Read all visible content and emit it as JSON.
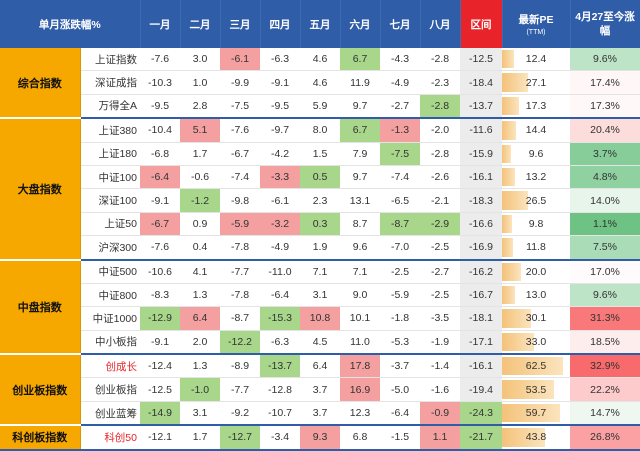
{
  "header": {
    "title": "单月涨跌幅%",
    "months": [
      "一月",
      "二月",
      "三月",
      "四月",
      "五月",
      "六月",
      "七月",
      "八月"
    ],
    "range": "区间",
    "pe": "最新PE",
    "pe_sub": "(TTM)",
    "ret": "4月27至今涨幅"
  },
  "colors": {
    "header_blue": "#2f5da8",
    "header_red": "#e8232a",
    "group_orange": "#f6a800",
    "positive_red": "#f4a0a0",
    "negative_green": "#a8d68a"
  },
  "groups": [
    {
      "name": "综合指数",
      "rows": [
        {
          "name": "上证指数",
          "m": [
            "-7.6",
            "3.0",
            "-6.1",
            "-6.3",
            "4.6",
            "6.7",
            "-4.3",
            "-2.8"
          ],
          "hl": [
            "",
            "",
            "pos",
            "",
            "",
            "neg",
            "",
            ""
          ],
          "range": "-12.5",
          "range_hl": "pos",
          "pe": "12.4",
          "pe_v": 12.4,
          "ret": "9.6%",
          "ret_v": 9.6
        },
        {
          "name": "深证成指",
          "m": [
            "-10.3",
            "1.0",
            "-9.9",
            "-9.1",
            "4.6",
            "11.9",
            "-4.9",
            "-2.3"
          ],
          "hl": [
            "",
            "",
            "",
            "",
            "",
            "",
            "",
            ""
          ],
          "range": "-18.4",
          "range_hl": "",
          "pe": "27.1",
          "pe_v": 27.1,
          "ret": "17.4%",
          "ret_v": 17.4
        },
        {
          "name": "万得全A",
          "m": [
            "-9.5",
            "2.8",
            "-7.5",
            "-9.5",
            "5.9",
            "9.7",
            "-2.7",
            "-2.8"
          ],
          "hl": [
            "",
            "",
            "",
            "",
            "",
            "",
            "",
            "neg"
          ],
          "range": "-13.7",
          "range_hl": "",
          "pe": "17.3",
          "pe_v": 17.3,
          "ret": "17.3%",
          "ret_v": 17.3
        }
      ]
    },
    {
      "name": "大盘指数",
      "rows": [
        {
          "name": "上证380",
          "m": [
            "-10.4",
            "5.1",
            "-7.6",
            "-9.7",
            "8.0",
            "6.7",
            "-1.3",
            "-2.0"
          ],
          "hl": [
            "",
            "pos",
            "",
            "",
            "",
            "neg",
            "pos",
            ""
          ],
          "range": "-11.6",
          "range_hl": "pos",
          "pe": "14.4",
          "pe_v": 14.4,
          "ret": "20.4%",
          "ret_v": 20.4
        },
        {
          "name": "上证180",
          "m": [
            "-6.8",
            "1.7",
            "-6.7",
            "-4.2",
            "1.5",
            "7.9",
            "-7.5",
            "-2.8"
          ],
          "hl": [
            "",
            "",
            "",
            "",
            "",
            "",
            "neg",
            ""
          ],
          "range": "-15.9",
          "range_hl": "",
          "pe": "9.6",
          "pe_v": 9.6,
          "ret": "3.7%",
          "ret_v": 3.7
        },
        {
          "name": "中证100",
          "m": [
            "-6.4",
            "-0.6",
            "-7.4",
            "-3.3",
            "0.5",
            "9.7",
            "-7.4",
            "-2.6"
          ],
          "hl": [
            "pos",
            "",
            "",
            "pos",
            "neg",
            "",
            "",
            ""
          ],
          "range": "-16.1",
          "range_hl": "",
          "pe": "13.2",
          "pe_v": 13.2,
          "ret": "4.8%",
          "ret_v": 4.8
        },
        {
          "name": "深证100",
          "m": [
            "-9.1",
            "-1.2",
            "-9.8",
            "-6.1",
            "2.3",
            "13.1",
            "-6.5",
            "-2.1"
          ],
          "hl": [
            "",
            "neg",
            "",
            "",
            "",
            "",
            "",
            ""
          ],
          "range": "-18.3",
          "range_hl": "",
          "pe": "26.5",
          "pe_v": 26.5,
          "ret": "14.0%",
          "ret_v": 14.0
        },
        {
          "name": "上证50",
          "m": [
            "-6.7",
            "0.9",
            "-5.9",
            "-3.2",
            "0.3",
            "8.7",
            "-8.7",
            "-2.9"
          ],
          "hl": [
            "pos",
            "",
            "pos",
            "pos",
            "neg",
            "",
            "neg",
            "neg"
          ],
          "range": "-16.6",
          "range_hl": "",
          "pe": "9.8",
          "pe_v": 9.8,
          "ret": "1.1%",
          "ret_v": 1.1
        },
        {
          "name": "沪深300",
          "m": [
            "-7.6",
            "0.4",
            "-7.8",
            "-4.9",
            "1.9",
            "9.6",
            "-7.0",
            "-2.5"
          ],
          "hl": [
            "",
            "",
            "",
            "",
            "",
            "",
            "",
            ""
          ],
          "range": "-16.9",
          "range_hl": "",
          "pe": "11.8",
          "pe_v": 11.8,
          "ret": "7.5%",
          "ret_v": 7.5
        }
      ]
    },
    {
      "name": "中盘指数",
      "rows": [
        {
          "name": "中证500",
          "m": [
            "-10.6",
            "4.1",
            "-7.7",
            "-11.0",
            "7.1",
            "7.1",
            "-2.5",
            "-2.7"
          ],
          "hl": [
            "",
            "",
            "",
            "",
            "",
            "",
            "",
            ""
          ],
          "range": "-16.2",
          "range_hl": "",
          "pe": "20.0",
          "pe_v": 20.0,
          "ret": "17.0%",
          "ret_v": 17.0
        },
        {
          "name": "中证800",
          "m": [
            "-8.3",
            "1.3",
            "-7.8",
            "-6.4",
            "3.1",
            "9.0",
            "-5.9",
            "-2.5"
          ],
          "hl": [
            "",
            "",
            "",
            "",
            "",
            "",
            "",
            ""
          ],
          "range": "-16.7",
          "range_hl": "",
          "pe": "13.0",
          "pe_v": 13.0,
          "ret": "9.6%",
          "ret_v": 9.6
        },
        {
          "name": "中证1000",
          "m": [
            "-12.9",
            "6.4",
            "-8.7",
            "-15.3",
            "10.8",
            "10.1",
            "-1.8",
            "-3.5"
          ],
          "hl": [
            "neg",
            "pos",
            "",
            "neg",
            "pos",
            "",
            "",
            ""
          ],
          "range": "-18.1",
          "range_hl": "",
          "pe": "30.1",
          "pe_v": 30.1,
          "ret": "31.3%",
          "ret_v": 31.3
        },
        {
          "name": "中小板指",
          "m": [
            "-9.1",
            "2.0",
            "-12.2",
            "-6.3",
            "4.5",
            "11.0",
            "-5.3",
            "-1.9"
          ],
          "hl": [
            "",
            "",
            "neg",
            "",
            "",
            "",
            "",
            ""
          ],
          "range": "-17.1",
          "range_hl": "",
          "pe": "33.0",
          "pe_v": 33.0,
          "ret": "18.5%",
          "ret_v": 18.5
        }
      ]
    },
    {
      "name": "创业板指数",
      "rows": [
        {
          "name": "创成长",
          "name_red": true,
          "m": [
            "-12.4",
            "1.3",
            "-8.9",
            "-13.7",
            "6.4",
            "17.8",
            "-3.7",
            "-1.4"
          ],
          "hl": [
            "",
            "",
            "",
            "neg",
            "",
            "pos",
            "",
            ""
          ],
          "range": "-16.1",
          "range_hl": "",
          "pe": "62.5",
          "pe_v": 62.5,
          "ret": "32.9%",
          "ret_v": 32.9
        },
        {
          "name": "创业板指",
          "m": [
            "-12.5",
            "-1.0",
            "-7.7",
            "-12.8",
            "3.7",
            "16.9",
            "-5.0",
            "-1.6"
          ],
          "hl": [
            "",
            "neg",
            "",
            "",
            "",
            "pos",
            "",
            ""
          ],
          "range": "-19.4",
          "range_hl": "",
          "pe": "53.5",
          "pe_v": 53.5,
          "ret": "22.2%",
          "ret_v": 22.2
        },
        {
          "name": "创业蓝筹",
          "m": [
            "-14.9",
            "3.1",
            "-9.2",
            "-10.7",
            "3.7",
            "12.3",
            "-6.4",
            "-0.9"
          ],
          "hl": [
            "neg",
            "",
            "",
            "",
            "",
            "",
            "",
            "pos"
          ],
          "range": "-24.3",
          "range_hl": "neg",
          "pe": "59.7",
          "pe_v": 59.7,
          "ret": "14.7%",
          "ret_v": 14.7
        }
      ]
    },
    {
      "name": "科创板指数",
      "rows": [
        {
          "name": "科创50",
          "name_red": true,
          "m": [
            "-12.1",
            "1.7",
            "-12.7",
            "-3.4",
            "9.3",
            "6.8",
            "-1.5",
            "1.1"
          ],
          "hl": [
            "",
            "",
            "neg",
            "",
            "pos",
            "",
            "",
            "pos"
          ],
          "range": "-21.7",
          "range_hl": "neg",
          "pe": "43.8",
          "pe_v": 43.8,
          "ret": "26.8%",
          "ret_v": 26.8
        }
      ]
    }
  ]
}
